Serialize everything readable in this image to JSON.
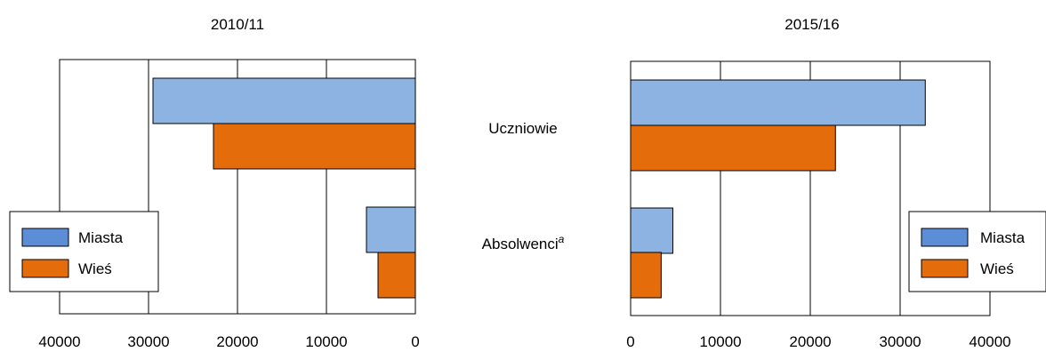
{
  "chart_data": [
    {
      "type": "bar",
      "orientation": "horizontal",
      "x_direction": "reversed",
      "title": "2010/11",
      "categories": [
        "Uczniowie",
        "Absolwenci"
      ],
      "series": [
        {
          "name": "Miasta",
          "values": [
            29500,
            5500
          ]
        },
        {
          "name": "Wieś",
          "values": [
            22700,
            4200
          ]
        }
      ],
      "xlim": [
        0,
        40000
      ],
      "xticks": [
        "40000",
        "30000",
        "20000",
        "10000",
        "0"
      ],
      "grid": true,
      "legend": "bottom-left"
    },
    {
      "type": "bar",
      "orientation": "horizontal",
      "x_direction": "normal",
      "title": "2015/16",
      "categories": [
        "Uczniowie",
        "Absolwenci"
      ],
      "series": [
        {
          "name": "Miasta",
          "values": [
            32800,
            4700
          ]
        },
        {
          "name": "Wieś",
          "values": [
            22800,
            3400
          ]
        }
      ],
      "xlim": [
        0,
        40000
      ],
      "xticks": [
        "0",
        "10000",
        "20000",
        "30000",
        "40000"
      ],
      "grid": true,
      "legend": "bottom-right"
    }
  ],
  "category_labels": {
    "uczniowie": "Uczniowie",
    "absolwenci": "Absolwenci",
    "absolwenci_sup": "a"
  },
  "legend": {
    "miasta": "Miasta",
    "wies": "Wieś"
  },
  "colors": {
    "miasta_bar": "#8DB3E2",
    "wies_bar": "#E46C0A",
    "miasta_legend": "#5B8ED6",
    "wies_legend": "#E46C0A"
  }
}
